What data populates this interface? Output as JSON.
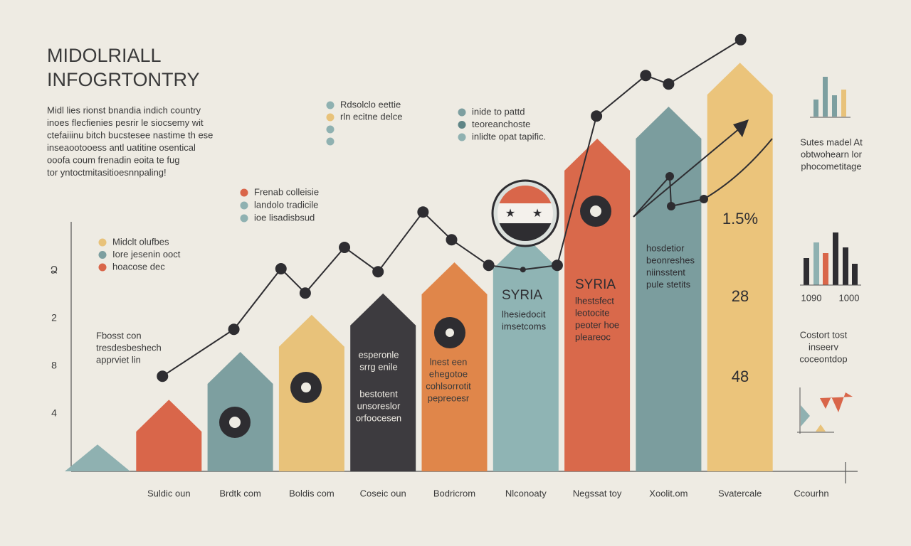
{
  "chart_data": {
    "type": "bar",
    "title": [
      "MIDOLRIALL",
      "INFOGRTONTRY"
    ],
    "intro": [
      "Midl lies rionst bnandia indich country",
      "inoes flecfienies pesrir le siocsemy wit",
      "ctefaiiinu bitch bucstesee nastime th ese",
      "inseaootooess antl uatitine osentical",
      "ooofa coum frenadin eoita te fug",
      "tor yntoctmitasitioesnnpaling!"
    ],
    "categories": [
      null,
      "Suldic oun",
      "Brdtk com",
      "Boldis com",
      "Coseic oun",
      "Bodricrom",
      "Nlconoaty",
      "Negssat toy",
      "Xoolit.om",
      "Svatercale",
      "Ccourhn"
    ],
    "values": [
      6.3,
      16.8,
      28,
      36.7,
      41.7,
      49,
      55,
      78,
      85.5,
      95.8,
      null
    ],
    "colors": [
      "#8fb1b1",
      "#d9664a",
      "#7d9fa0",
      "#e8c27a",
      "#3d3b3f",
      "#e0864a",
      "#8fb4b4",
      "#d9694b",
      "#7b9d9e",
      "#ebc47b",
      null
    ],
    "ylim": [
      0,
      105
    ],
    "y_axis_labels": [
      "Ձ",
      "2",
      "8",
      "4"
    ],
    "line": {
      "color": "#2e2d31",
      "x": [
        0.91,
        1.91,
        2.57,
        2.91,
        3.46,
        3.93,
        4.56,
        4.96,
        5.48,
        5.96,
        6.44,
        6.99,
        7.68,
        8.0,
        9.01
      ],
      "values": [
        22.3,
        33.3,
        47.5,
        41.8,
        52.5,
        46.8,
        60.8,
        54.3,
        48.3,
        47.3,
        48.3,
        83.3,
        92.8,
        90.8,
        101.2
      ]
    },
    "legends": [
      {
        "items": [
          {
            "label": "Rdsolclo eettie",
            "color": "#8fb1b1"
          },
          {
            "label": "rln ecitne delce",
            "color": "#e8c27a"
          }
        ]
      },
      {
        "items": [
          {
            "label": "inide to pattd",
            "color": "#7d9fa0"
          },
          {
            "label": "teoreanchoste",
            "color": "#5f8586"
          },
          {
            "label": "inlidte opat tapific.",
            "color": "#8fb1b1"
          }
        ]
      },
      {
        "items": [
          {
            "label": "Frenab colleisie",
            "color": "#d9664a"
          },
          {
            "label": "landolo tradicile",
            "color": "#8fb1b1"
          },
          {
            "label": "ioe lisadisbsud",
            "color": "#8fb1b1"
          }
        ]
      },
      {
        "items": [
          {
            "label": "Midclt olufbes",
            "color": "#e8c27a"
          },
          {
            "label": "Iore jesenin ooct",
            "color": "#7d9fa0"
          },
          {
            "label": "hoacose dec",
            "color": "#d9664a"
          }
        ]
      }
    ],
    "text_blocks": [
      {
        "lines": [
          "Fbosst con",
          "tresdesbeshech",
          "apprviet lin"
        ]
      },
      {
        "lines": [
          "esperonle",
          "srrg enile"
        ]
      },
      {
        "lines": [
          "bestotent",
          "unsoreslor",
          "orfoocesen"
        ]
      },
      {
        "lines": [
          "lnest een",
          "ehegotoe",
          "cohlsorrotit",
          "pepreoesr"
        ]
      },
      {
        "lines": [
          "SYRIA"
        ]
      },
      {
        "lines": [
          "lhesiedocit",
          "imsetcoms"
        ]
      },
      {
        "lines": [
          "SYRIA"
        ]
      },
      {
        "lines": [
          "lhestsfect",
          "leotocite",
          "peoter hoe",
          "pleareoc"
        ]
      },
      {
        "lines": [
          "hosdetior",
          "beonreshes",
          "niinsstent",
          "pule stetits"
        ]
      },
      {
        "lines": [
          "1.5%"
        ]
      },
      {
        "lines": [
          "28"
        ]
      },
      {
        "lines": [
          "48"
        ]
      },
      {
        "lines": [
          "Sutes madel At",
          "obtwohearn lor",
          "phocometitage"
        ]
      },
      {
        "lines": [
          "Costort tost",
          "inseerv",
          "coceontdop"
        ]
      },
      {
        "lines": [
          "1090"
        ]
      },
      {
        "lines": [
          "1000"
        ]
      }
    ]
  }
}
